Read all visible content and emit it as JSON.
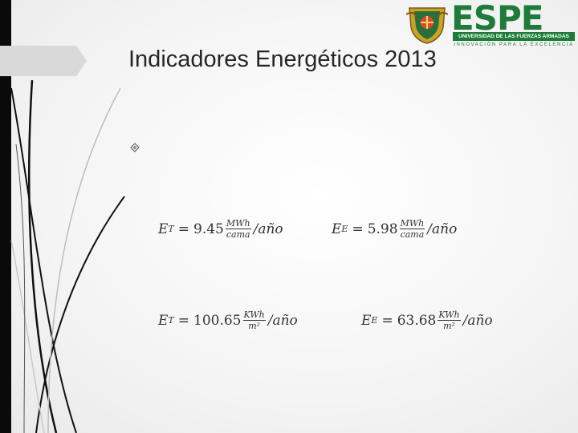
{
  "slide": {
    "title": "Indicadores Energéticos 2013",
    "logo": {
      "wordmark": "ESPE",
      "subtitle": "UNIVERSIDAD DE LAS FUERZAS ARMADAS",
      "motto": "INNOVACIÓN PARA LA EXCELENCIA"
    },
    "bullet_icon": "diamond-bullet-icon",
    "equations": [
      {
        "symbol": "E",
        "subscript": "T",
        "equals": "=",
        "value": "9.45",
        "unit_num": "MWh",
        "unit_den": "cama",
        "per": "/año"
      },
      {
        "symbol": "E",
        "subscript": "E",
        "equals": "=",
        "value": "5.98",
        "unit_num": "MWh",
        "unit_den": "cama",
        "per": "/año"
      },
      {
        "symbol": "E",
        "subscript": "T",
        "equals": "=",
        "value": "100.65",
        "unit_num": "KWh",
        "unit_den": "m²",
        "per": "/año"
      },
      {
        "symbol": "E",
        "subscript": "E",
        "equals": "=",
        "value": "63.68",
        "unit_num": "KWh",
        "unit_den": "m²",
        "per": "/año"
      }
    ],
    "colors": {
      "brand_green": "#1e7b3a",
      "title_text": "#262626",
      "left_bar": "#0a0a0a",
      "tab": "#d9d9d9"
    }
  }
}
